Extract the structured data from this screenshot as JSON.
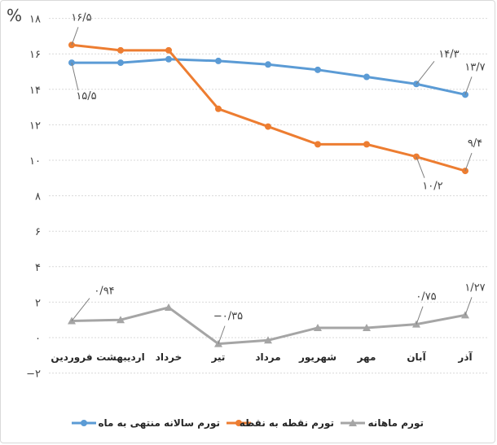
{
  "chart_data": {
    "type": "line",
    "ylabel": "%",
    "ylim": [
      -2,
      18
    ],
    "yticks": [
      {
        "v": 18,
        "label": "۱۸"
      },
      {
        "v": 16,
        "label": "۱۶"
      },
      {
        "v": 14,
        "label": "۱۴"
      },
      {
        "v": 12,
        "label": "۱۲"
      },
      {
        "v": 10,
        "label": "۱۰"
      },
      {
        "v": 8,
        "label": "۸"
      },
      {
        "v": 6,
        "label": "۶"
      },
      {
        "v": 4,
        "label": "۴"
      },
      {
        "v": 2,
        "label": "۲"
      },
      {
        "v": 0,
        "label": "۰"
      },
      {
        "v": -2,
        "label": "−۲"
      }
    ],
    "grid": true,
    "legend_position": "bottom",
    "categories": [
      "فروردین",
      "اردیبهشت",
      "خرداد",
      "تیر",
      "مرداد",
      "شهریور",
      "مهر",
      "آبان",
      "آذر"
    ],
    "series": [
      {
        "name": "تورم سالانه منتهی به ماه",
        "color": "#5b9bd5",
        "marker": "circle",
        "values": [
          15.5,
          15.5,
          15.7,
          15.6,
          15.4,
          15.1,
          14.7,
          14.3,
          13.7
        ]
      },
      {
        "name": "تورم نقطه به نقطه",
        "color": "#ed7d31",
        "marker": "circle",
        "values": [
          16.5,
          16.2,
          16.2,
          12.9,
          11.9,
          10.9,
          10.9,
          10.2,
          9.4
        ]
      },
      {
        "name": "تورم ماهانه",
        "color": "#a5a5a5",
        "marker": "triangle",
        "values": [
          0.94,
          1.0,
          1.7,
          -0.35,
          -0.15,
          0.55,
          0.55,
          0.75,
          1.27
        ]
      }
    ],
    "series_values_note": "",
    "annotations": [
      {
        "series": 1,
        "index": 0,
        "label": "۱۶/۵",
        "side": "above"
      },
      {
        "series": 0,
        "index": 0,
        "label": "۱۵/۵",
        "side": "below"
      },
      {
        "series": 0,
        "index": 7,
        "label": "۱۴/۳",
        "side": "above-right"
      },
      {
        "series": 0,
        "index": 8,
        "label": "۱۳/۷",
        "side": "above"
      },
      {
        "series": 1,
        "index": 7,
        "label": "۱۰/۲",
        "side": "below-right"
      },
      {
        "series": 1,
        "index": 8,
        "label": "۹/۴",
        "side": "above"
      },
      {
        "series": 2,
        "index": 0,
        "label": "۰/۹۴",
        "side": "above-right"
      },
      {
        "series": 2,
        "index": 3,
        "label": "−۰/۳۵",
        "side": "above"
      },
      {
        "series": 2,
        "index": 7,
        "label": "۰/۷۵",
        "side": "above"
      },
      {
        "series": 2,
        "index": 8,
        "label": "۱/۲۷",
        "side": "above"
      }
    ]
  }
}
